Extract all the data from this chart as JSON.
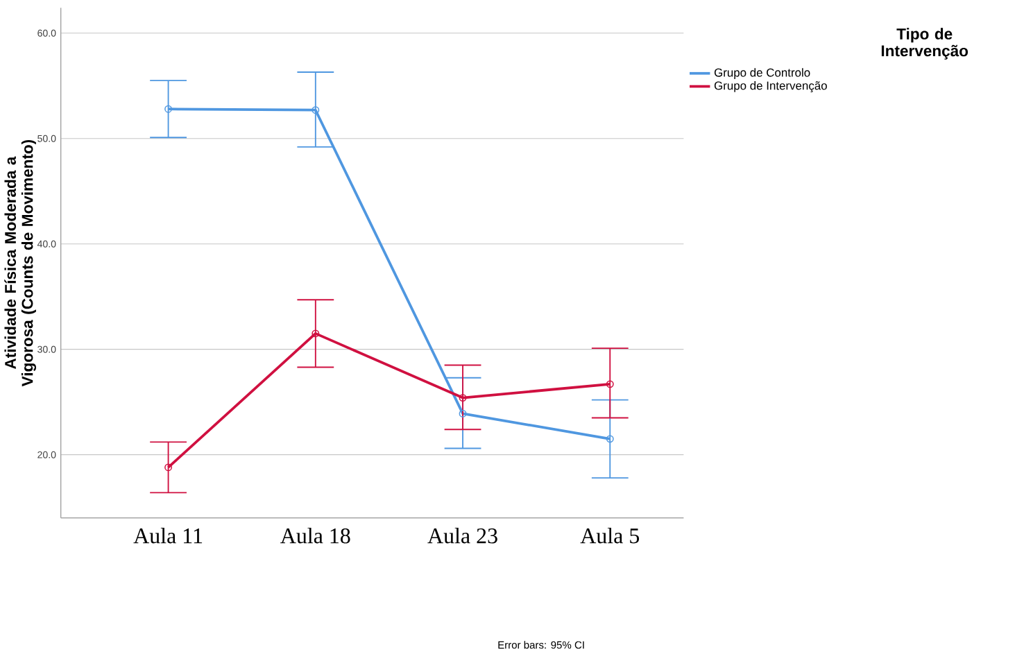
{
  "chart_data": {
    "type": "line",
    "ylabel": "Atividade Física Moderada a Vigorosa (Counts de Movimento)",
    "legend_title": "Tipo de Intervenção",
    "categories": [
      "Aula 11",
      "Aula 18",
      "Aula 23",
      "Aula 5"
    ],
    "series": [
      {
        "name": "Grupo de Controlo",
        "color": "#4f97e0",
        "values": [
          52.8,
          52.7,
          23.9,
          21.5
        ],
        "errors": [
          [
            50.1,
            55.5
          ],
          [
            49.2,
            56.3
          ],
          [
            20.6,
            27.3
          ],
          [
            17.8,
            25.2
          ]
        ]
      },
      {
        "name": "Grupo de Intervenção",
        "color": "#d01040",
        "values": [
          18.8,
          31.5,
          25.4,
          26.7
        ],
        "errors": [
          [
            16.4,
            21.2
          ],
          [
            28.3,
            34.7
          ],
          [
            22.4,
            28.5
          ],
          [
            23.5,
            30.1
          ]
        ]
      }
    ],
    "ylim": [
      14,
      62.4
    ],
    "yticks": [
      {
        "value": 20,
        "label": "20.0"
      },
      {
        "value": 30,
        "label": "30.0"
      },
      {
        "value": 40,
        "label": "40.0"
      },
      {
        "value": 50,
        "label": "50.0"
      },
      {
        "value": 60,
        "label": "60.0"
      }
    ],
    "grid": "y",
    "legend": "top right",
    "marker": "circle",
    "line_style": "solid",
    "annotations": [
      "Error bars: 95% CI"
    ]
  }
}
